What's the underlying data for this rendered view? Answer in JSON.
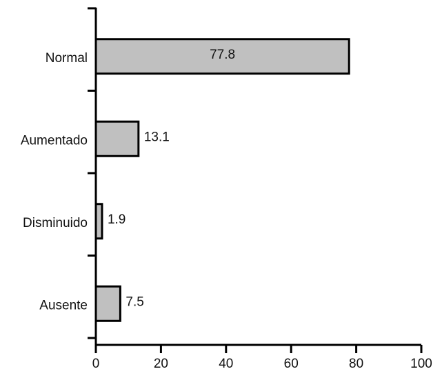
{
  "chart_data": {
    "type": "bar",
    "orientation": "horizontal",
    "categories": [
      "Normal",
      "Aumentado",
      "Disminuido",
      "Ausente"
    ],
    "values": [
      77.8,
      13.1,
      1.9,
      7.5
    ],
    "data_labels": [
      "77.8",
      "13.1",
      "1.9",
      "7.5"
    ],
    "xlim": [
      0,
      100
    ],
    "xticks": [
      0,
      20,
      40,
      60,
      80,
      100
    ],
    "grid": false,
    "colors": {
      "bar_fill": "#c0c0c0",
      "bar_stroke": "#000000",
      "axis": "#000000"
    }
  }
}
